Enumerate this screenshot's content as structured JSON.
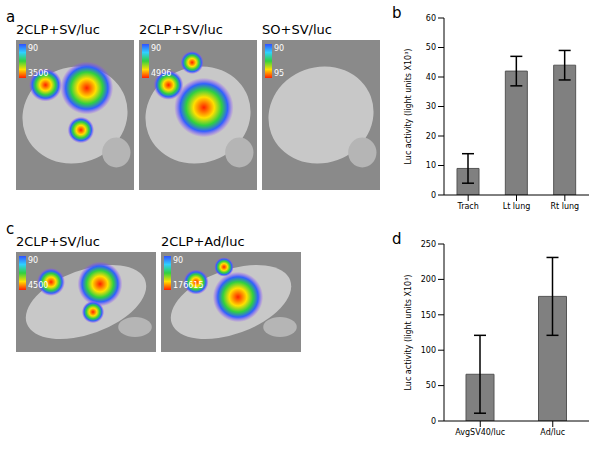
{
  "images": [
    {
      "panel_label": "a",
      "pictures": [
        {
          "caption": "2CLP+SV/luc",
          "scale_min": 90,
          "scale_max": 3506
        },
        {
          "caption": "2CLP+SV/luc",
          "scale_min": 90,
          "scale_max": 4996
        },
        {
          "caption": "SO+SV/luc",
          "scale_min": 90,
          "scale_max": 95
        }
      ]
    },
    {
      "panel_label": "c",
      "pictures": [
        {
          "caption": "2CLP+SV/luc",
          "scale_min": 90,
          "scale_max": 4500
        },
        {
          "caption": "2CLP+Ad/luc",
          "scale_min": 90,
          "scale_max": 176615
        }
      ]
    }
  ],
  "chart_data": [
    {
      "type": "bar",
      "panel_label": "b",
      "ylabel": "Luc activity (light units X10³)",
      "categories": [
        "Trach",
        "Lt lung",
        "Rt lung"
      ],
      "values": [
        9,
        42,
        44
      ],
      "errors": [
        5,
        5,
        5
      ],
      "color": "#808080",
      "ylim": [
        0,
        60
      ],
      "yticks": [
        0,
        10,
        20,
        30,
        40,
        50,
        60
      ]
    },
    {
      "type": "bar",
      "panel_label": "d",
      "ylabel": "Luc activity (light units X10³)",
      "categories": [
        "AvgSV40/luc",
        "Ad/luc"
      ],
      "values": [
        66,
        176
      ],
      "errors": [
        55,
        55
      ],
      "color": "#808080",
      "ylim": [
        0,
        250
      ],
      "yticks": [
        0,
        50,
        100,
        150,
        200,
        250
      ]
    }
  ]
}
